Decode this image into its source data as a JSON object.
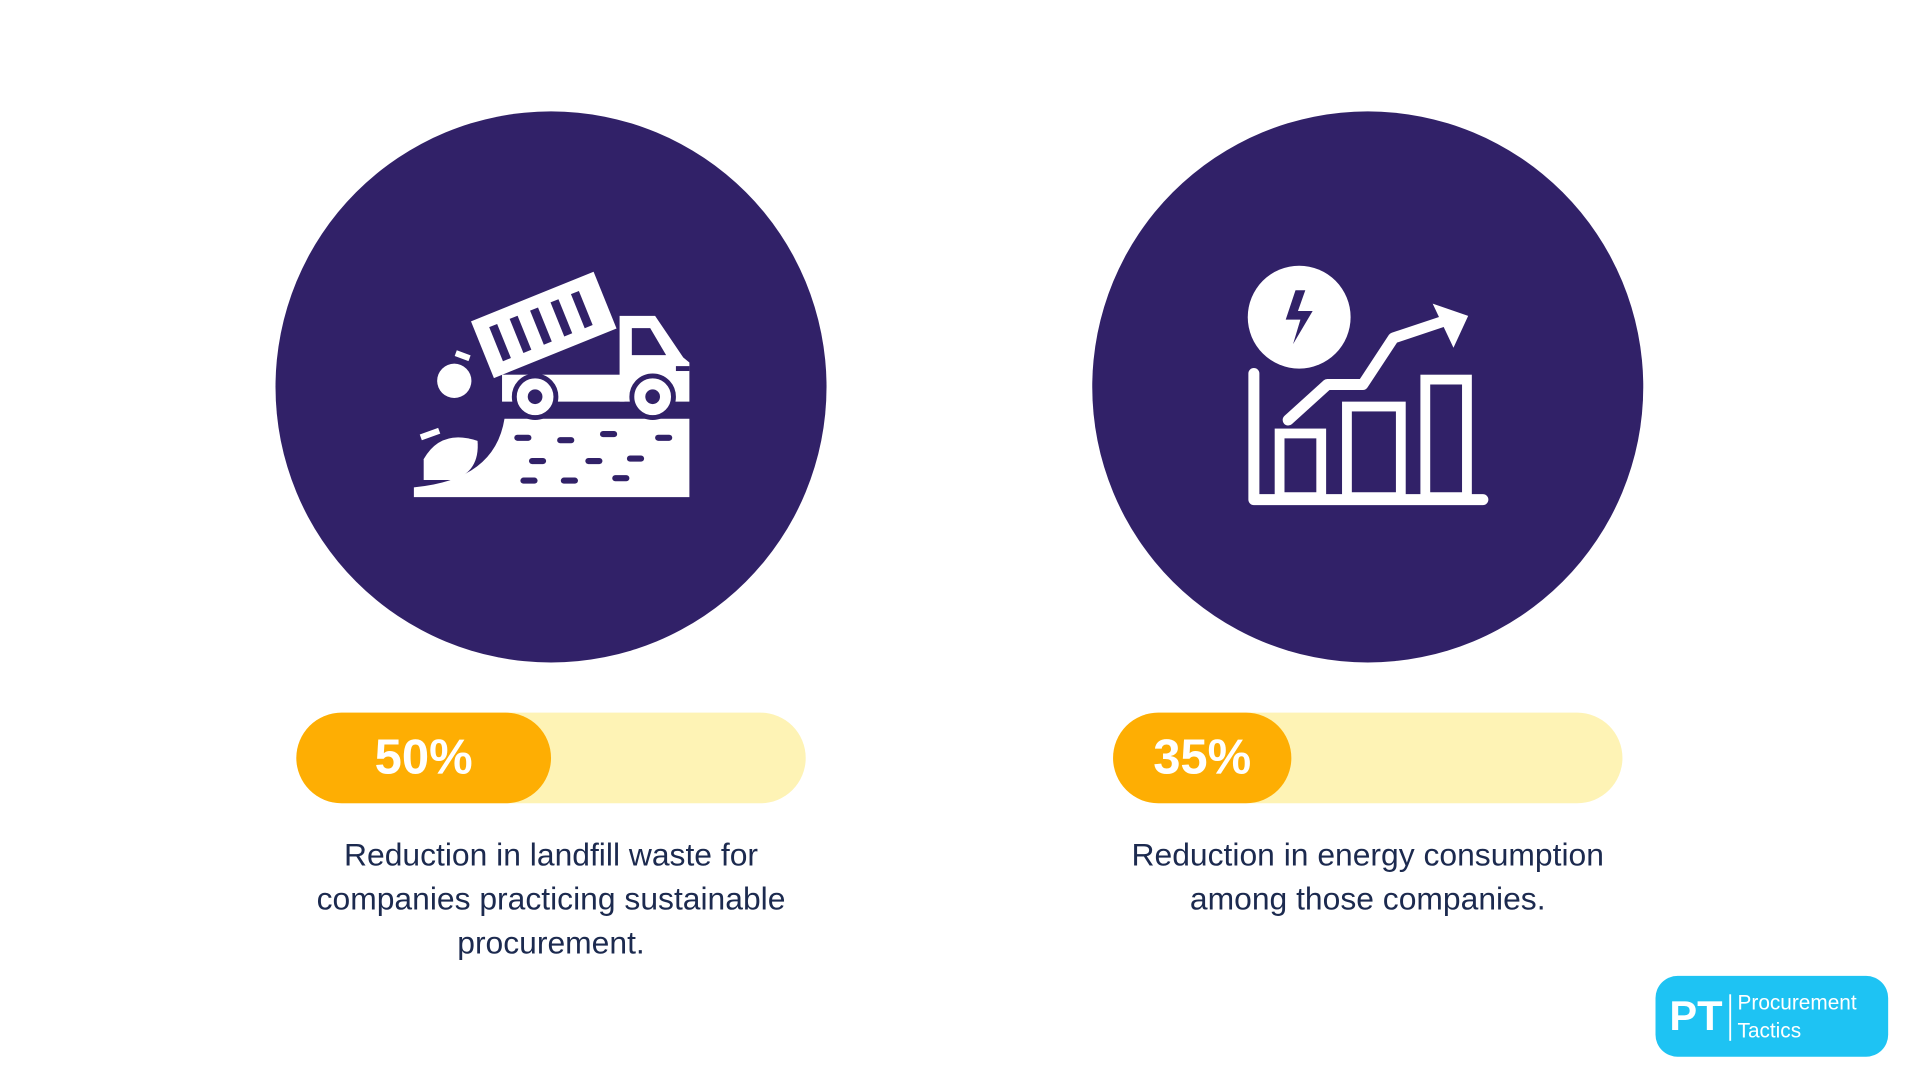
{
  "stats": [
    {
      "label": "50%",
      "value": 50,
      "xlim": [
        0,
        100
      ],
      "description_lines": [
        "Reduction in landfill waste for",
        "companies practicing sustainable",
        "procurement."
      ]
    },
    {
      "label": "35%",
      "value": 35,
      "xlim": [
        0,
        100
      ],
      "description_lines": [
        "Reduction in energy consumption",
        "among those companies."
      ]
    }
  ],
  "logo": {
    "initials": "PT",
    "name_lines": [
      "Procurement",
      "Tactics"
    ]
  }
}
